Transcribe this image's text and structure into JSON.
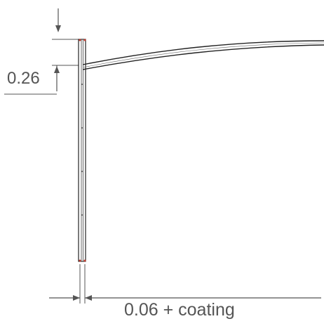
{
  "diagram": {
    "dimensions": {
      "height_label": "0.26",
      "thickness_label": "0.06 + coating"
    },
    "colors": {
      "dimension": "#555555",
      "outline": "#222222",
      "marker": "#c0392b"
    }
  }
}
